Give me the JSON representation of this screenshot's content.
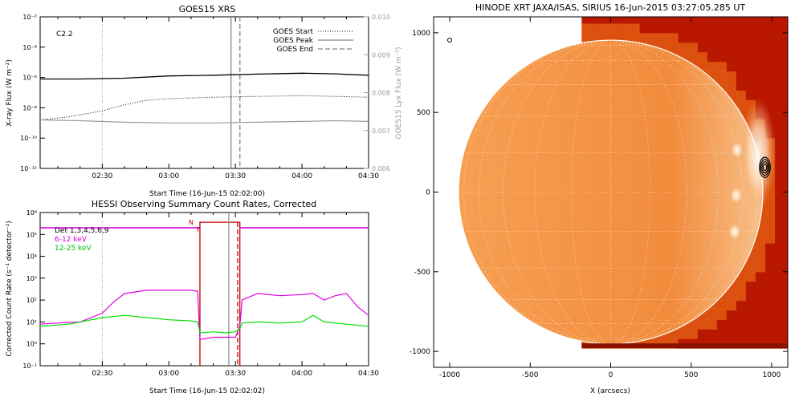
{
  "colors": {
    "axis": "#000000",
    "grey": "#9a9a9a",
    "magenta": "#e000e0",
    "green": "#00e000",
    "red": "#c00000",
    "sun_dark": "#b81800",
    "sun_mid": "#e05a10",
    "sun_light": "#f39a4a"
  },
  "chart_data": [
    {
      "id": "goes",
      "type": "line",
      "title": "GOES15 XRS",
      "xlabel": "Start Time (16-Jun-15 02:02:00)",
      "ylabel": "X-ray Flux (W m⁻²)",
      "y2label": "GOES15 Lyx Flux (W m⁻²)",
      "annotation": "C2.2",
      "x_ticks": [
        "02:30",
        "03:00",
        "03:30",
        "04:00",
        "04:30"
      ],
      "x_tick_minutes": [
        150,
        180,
        210,
        240,
        270
      ],
      "xlim_minutes": [
        122,
        270
      ],
      "y_scale": "log",
      "ylim_exp": [
        -12,
        -2
      ],
      "y_tick_labels": [
        "10⁻¹²",
        "10⁻¹⁰",
        "10⁻⁸",
        "10⁻⁶",
        "10⁻⁴",
        "10⁻²"
      ],
      "y_tick_exp": [
        -12,
        -10,
        -8,
        -6,
        -4,
        -2
      ],
      "y2lim": [
        0.006,
        0.01
      ],
      "y2_ticks": [
        "0.006",
        "0.007",
        "0.008",
        "0.009",
        "0.010"
      ],
      "y2_tick_values": [
        0.006,
        0.007,
        0.008,
        0.009,
        0.01
      ],
      "legend": [
        "GOES Start",
        "GOES Peak",
        "GOES End"
      ],
      "legend_position": "top-right",
      "event_lines_minutes": {
        "start": 150,
        "peak": 208,
        "end": 212
      },
      "series": [
        {
          "name": "",
          "style": "solid-black",
          "x": [
            122,
            140,
            160,
            180,
            200,
            220,
            240,
            255,
            270
          ],
          "y_exp": [
            -6.1,
            -6.1,
            -6.05,
            -5.9,
            -5.85,
            -5.78,
            -5.72,
            -5.76,
            -5.85
          ]
        },
        {
          "name": "",
          "style": "dotted-black",
          "x": [
            122,
            135,
            150,
            160,
            170,
            180,
            200,
            220,
            240,
            255,
            270
          ],
          "y_exp": [
            -8.8,
            -8.6,
            -8.2,
            -7.8,
            -7.5,
            -7.4,
            -7.3,
            -7.25,
            -7.2,
            -7.25,
            -7.3
          ]
        },
        {
          "name": "",
          "style": "grey",
          "x": [
            122,
            140,
            160,
            180,
            200,
            220,
            240,
            255,
            270
          ],
          "y_exp": [
            -8.8,
            -8.85,
            -8.95,
            -9.0,
            -9.0,
            -8.95,
            -8.9,
            -8.85,
            -8.9
          ]
        }
      ]
    },
    {
      "id": "hessi",
      "type": "line",
      "title": "HESSI Observing Summary Count Rates, Corrected",
      "xlabel": "Start Time (16-Jun-15 02:02:02)",
      "ylabel": "Corrected Count Rate (s⁻¹ detector⁻¹)",
      "x_ticks": [
        "02:30",
        "03:00",
        "03:30",
        "04:00",
        "04:30"
      ],
      "x_tick_minutes": [
        150,
        180,
        210,
        240,
        270
      ],
      "xlim_minutes": [
        122,
        270
      ],
      "y_scale": "log",
      "ylim_exp": [
        -1,
        6
      ],
      "y_tick_labels": [
        "10⁻¹",
        "10⁰",
        "10¹",
        "10²",
        "10³",
        "10⁴",
        "10⁵",
        "10⁶"
      ],
      "y_tick_exp": [
        -1,
        0,
        1,
        2,
        3,
        4,
        5,
        6
      ],
      "legend": [
        "Det 1,3,4,5,6,9",
        "6-12 keV",
        "12-25 keV"
      ],
      "legend_position": "top-left",
      "flags": {
        "night": "N",
        "flare": "F"
      },
      "night_interval_minutes": [
        194,
        212
      ],
      "event_lines_minutes": {
        "start": 150,
        "peak": 207,
        "end": 211
      },
      "series": [
        {
          "name": "6-12 keV",
          "color_key": "magenta",
          "x": [
            122,
            130,
            140,
            150,
            155,
            160,
            170,
            180,
            190,
            193,
            194,
            200,
            205,
            210,
            212,
            213,
            220,
            230,
            240,
            245,
            250,
            255,
            260,
            265,
            270
          ],
          "y_exp": [
            0.9,
            0.95,
            1.0,
            1.4,
            1.9,
            2.3,
            2.45,
            2.45,
            2.45,
            2.4,
            0.2,
            0.3,
            0.3,
            0.3,
            0.8,
            2.0,
            2.3,
            2.2,
            2.25,
            2.3,
            2.0,
            2.2,
            2.3,
            1.7,
            1.3
          ]
        },
        {
          "name": "12-25 keV",
          "color_key": "green",
          "x": [
            122,
            135,
            150,
            160,
            170,
            180,
            190,
            193,
            194,
            200,
            205,
            210,
            212,
            213,
            220,
            230,
            240,
            245,
            250,
            260,
            270
          ],
          "y_exp": [
            0.8,
            0.9,
            1.2,
            1.3,
            1.2,
            1.1,
            1.05,
            1.0,
            0.5,
            0.55,
            0.5,
            0.55,
            0.7,
            0.95,
            1.0,
            0.95,
            1.0,
            1.3,
            1.0,
            0.9,
            0.8
          ]
        },
        {
          "name": "Det 1,3,4,5,6,9",
          "color_key": "magenta",
          "x": [
            122,
            194,
            212,
            270
          ],
          "y_exp": [
            5.3,
            5.3,
            5.3,
            5.3
          ]
        }
      ]
    },
    {
      "id": "xrt",
      "type": "heatmap",
      "title": "HINODE XRT JAXA/ISAS, SIRIUS 16-Jun-2015 03:27:05.285 UT",
      "xlabel": "X (arcsecs)",
      "ylabel": "",
      "xlim": [
        -1100,
        1100
      ],
      "ylim": [
        -1100,
        1100
      ],
      "x_ticks": [
        "-1000",
        "-500",
        "0",
        "500",
        "1000"
      ],
      "x_tick_values": [
        -1000,
        -500,
        0,
        500,
        1000
      ],
      "y_ticks": [
        "-1000",
        "-500",
        "0",
        "500",
        "1000"
      ],
      "y_tick_values": [
        -1000,
        -500,
        0,
        500,
        1000
      ],
      "solar_radius_arcsec": 945,
      "image_extent": {
        "x": [
          -180,
          1100
        ],
        "y": [
          -980,
          1100
        ]
      },
      "contour_center": [
        958,
        155
      ],
      "bright_regions": [
        [
          785,
          265
        ],
        [
          780,
          -20
        ],
        [
          770,
          -250
        ]
      ]
    }
  ]
}
